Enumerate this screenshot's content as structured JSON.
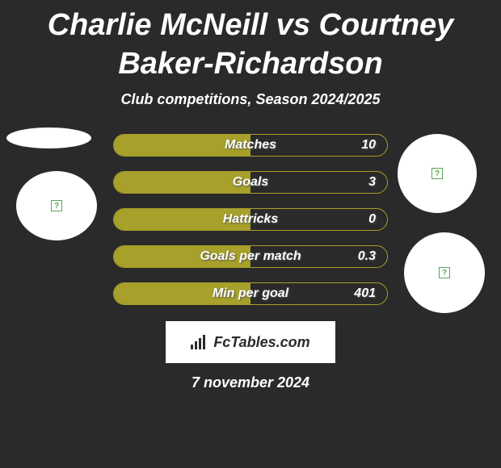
{
  "title": "Charlie McNeill vs Courtney Baker-Richardson",
  "subtitle": "Club competitions, Season 2024/2025",
  "brand": "FcTables.com",
  "date": "7 november 2024",
  "colors": {
    "background": "#2a2a2a",
    "bar_fill": "#a7a02a",
    "bar_border": "#a7a02a",
    "circle_fill": "#ffffff",
    "text": "#ffffff",
    "qmark": "#5aa655"
  },
  "chart": {
    "type": "horizontal-bar",
    "fill_pct_all": 50,
    "rows": [
      {
        "label": "Matches",
        "value": "10",
        "fill_pct": 50
      },
      {
        "label": "Goals",
        "value": "3",
        "fill_pct": 50
      },
      {
        "label": "Hattricks",
        "value": "0",
        "fill_pct": 50
      },
      {
        "label": "Goals per match",
        "value": "0.3",
        "fill_pct": 50
      },
      {
        "label": "Min per goal",
        "value": "401",
        "fill_pct": 50
      }
    ]
  }
}
